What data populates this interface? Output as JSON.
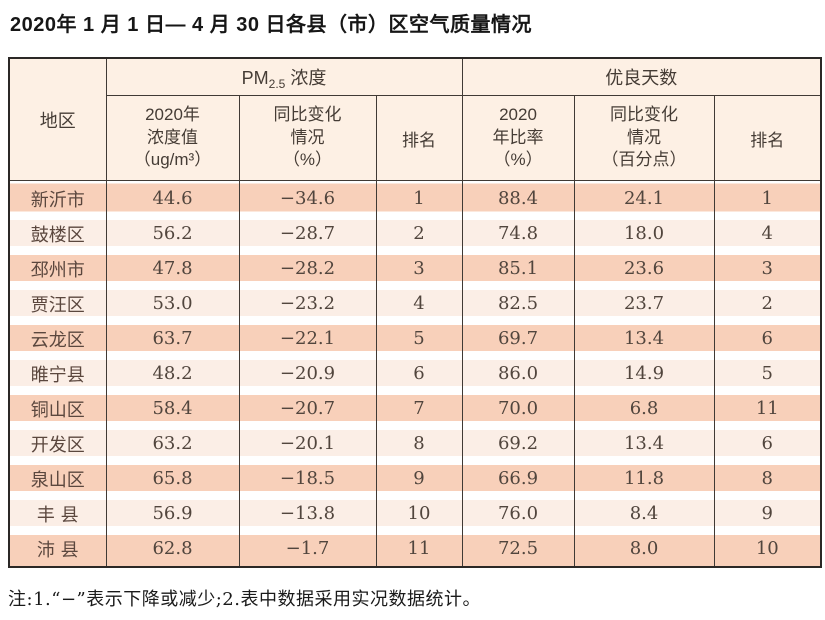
{
  "page_title": "2020年 1 月 1 日— 4 月 30 日各县（市）区空气质量情况",
  "footnote": "注:1.“−”表示下降或减少;2.表中数据采用实况数据统计。",
  "colors": {
    "stripe_dark": "#f8d0ba",
    "stripe_light": "#fbeee6",
    "header_bg": "#fdf0e4",
    "border_outer": "#2b2826",
    "border_inner": "#403a35",
    "text_data": "#51453d"
  },
  "table": {
    "region_header": "地区",
    "pm_group": {
      "prefix": "PM",
      "sub": "2.5",
      "suffix": " 浓度"
    },
    "good_group": "优良天数",
    "sub_headers": {
      "pm_value": "2020年\n浓度值\n（ug/m³）",
      "pm_change": "同比变化\n情况\n（%）",
      "pm_rank": "排名",
      "good_ratio": "2020\n年比率\n（%）",
      "good_change": "同比变化\n情况\n（百分点）",
      "good_rank": "排名"
    },
    "columns": [
      "region",
      "pm_value",
      "pm_change",
      "pm_rank",
      "good_ratio",
      "good_change",
      "good_rank"
    ],
    "rows": [
      {
        "region": "新沂市",
        "pm_value": "44.6",
        "pm_change": "−34.6",
        "pm_rank": "1",
        "good_ratio": "88.4",
        "good_change": "24.1",
        "good_rank": "1"
      },
      {
        "region": "鼓楼区",
        "pm_value": "56.2",
        "pm_change": "−28.7",
        "pm_rank": "2",
        "good_ratio": "74.8",
        "good_change": "18.0",
        "good_rank": "4"
      },
      {
        "region": "邳州市",
        "pm_value": "47.8",
        "pm_change": "−28.2",
        "pm_rank": "3",
        "good_ratio": "85.1",
        "good_change": "23.6",
        "good_rank": "3"
      },
      {
        "region": "贾汪区",
        "pm_value": "53.0",
        "pm_change": "−23.2",
        "pm_rank": "4",
        "good_ratio": "82.5",
        "good_change": "23.7",
        "good_rank": "2"
      },
      {
        "region": "云龙区",
        "pm_value": "63.7",
        "pm_change": "−22.1",
        "pm_rank": "5",
        "good_ratio": "69.7",
        "good_change": "13.4",
        "good_rank": "6"
      },
      {
        "region": "睢宁县",
        "pm_value": "48.2",
        "pm_change": "−20.9",
        "pm_rank": "6",
        "good_ratio": "86.0",
        "good_change": "14.9",
        "good_rank": "5"
      },
      {
        "region": "铜山区",
        "pm_value": "58.4",
        "pm_change": "−20.7",
        "pm_rank": "7",
        "good_ratio": "70.0",
        "good_change": "6.8",
        "good_rank": "11"
      },
      {
        "region": "开发区",
        "pm_value": "63.2",
        "pm_change": "−20.1",
        "pm_rank": "8",
        "good_ratio": "69.2",
        "good_change": "13.4",
        "good_rank": "6"
      },
      {
        "region": "泉山区",
        "pm_value": "65.8",
        "pm_change": "−18.5",
        "pm_rank": "9",
        "good_ratio": "66.9",
        "good_change": "11.8",
        "good_rank": "8"
      },
      {
        "region": "丰 县",
        "pm_value": "56.9",
        "pm_change": "−13.8",
        "pm_rank": "10",
        "good_ratio": "76.0",
        "good_change": "8.4",
        "good_rank": "9"
      },
      {
        "region": "沛 县",
        "pm_value": "62.8",
        "pm_change": "−1.7",
        "pm_rank": "11",
        "good_ratio": "72.5",
        "good_change": "8.0",
        "good_rank": "10"
      }
    ]
  }
}
